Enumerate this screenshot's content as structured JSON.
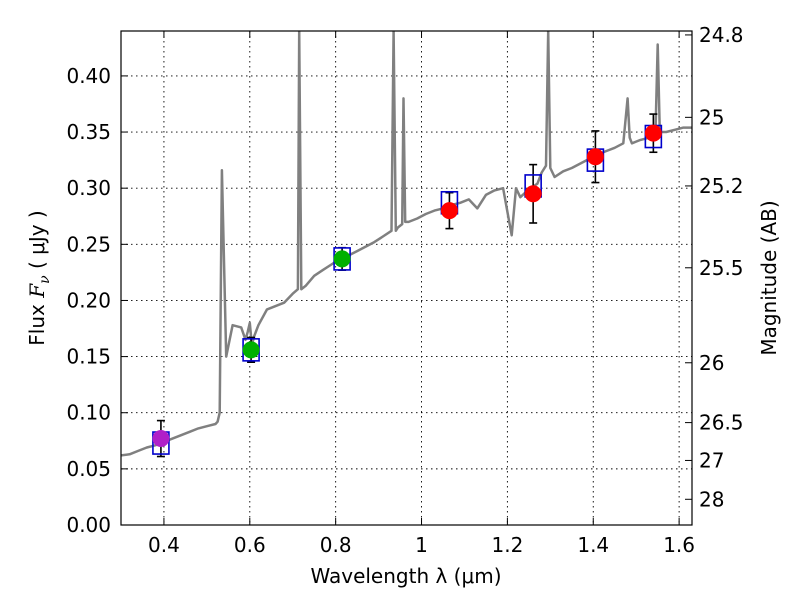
{
  "chart_data": {
    "type": "scatter",
    "xlabel": "Wavelength  λ (μm)",
    "ylabel_prefix": "Flux ",
    "ylabel_symbol": "F",
    "ylabel_sub": "ν",
    "ylabel_unit": "  ( μJy )",
    "y2label": "Magnitude (AB)",
    "xlim": [
      0.3,
      1.63
    ],
    "ylim": [
      0.0,
      0.44
    ],
    "grid": true,
    "x_ticks": [
      0.4,
      0.6,
      0.8,
      1.0,
      1.2,
      1.4,
      1.6
    ],
    "x_tick_labels": [
      "0.4",
      "0.6",
      "0.8",
      "1",
      "1.2",
      "1.4",
      "1.6"
    ],
    "y_ticks": [
      0.0,
      0.05,
      0.1,
      0.15,
      0.2,
      0.25,
      0.3,
      0.35,
      0.4
    ],
    "y_tick_labels": [
      "0.00",
      "0.05",
      "0.10",
      "0.15",
      "0.20",
      "0.25",
      "0.30",
      "0.35",
      "0.40"
    ],
    "mag_ticks": [
      {
        "label": "24.8",
        "flux": 0.4365
      },
      {
        "label": "25",
        "flux": 0.3631
      },
      {
        "label": "25.2",
        "flux": 0.302
      },
      {
        "label": "25.5",
        "flux": 0.2291
      },
      {
        "label": "26",
        "flux": 0.1445
      },
      {
        "label": "26.5",
        "flux": 0.0912
      },
      {
        "label": "27",
        "flux": 0.0575
      },
      {
        "label": "28",
        "flux": 0.0229
      }
    ],
    "spectrum": {
      "name": "model spectrum",
      "color": "#808080",
      "x": [
        0.3,
        0.32,
        0.34,
        0.36,
        0.38,
        0.4,
        0.42,
        0.44,
        0.46,
        0.48,
        0.5,
        0.52,
        0.525,
        0.53,
        0.535,
        0.545,
        0.56,
        0.58,
        0.59,
        0.595,
        0.6,
        0.605,
        0.61,
        0.62,
        0.64,
        0.66,
        0.68,
        0.7,
        0.712,
        0.715,
        0.72,
        0.73,
        0.75,
        0.77,
        0.79,
        0.81,
        0.83,
        0.85,
        0.87,
        0.89,
        0.91,
        0.93,
        0.935,
        0.94,
        0.945,
        0.955,
        0.958,
        0.962,
        0.97,
        0.99,
        1.01,
        1.03,
        1.05,
        1.07,
        1.09,
        1.11,
        1.13,
        1.15,
        1.17,
        1.19,
        1.21,
        1.22,
        1.23,
        1.25,
        1.27,
        1.28,
        1.29,
        1.295,
        1.3,
        1.31,
        1.33,
        1.35,
        1.37,
        1.39,
        1.41,
        1.43,
        1.45,
        1.47,
        1.48,
        1.485,
        1.49,
        1.51,
        1.53,
        1.545,
        1.55,
        1.555,
        1.57,
        1.59,
        1.61,
        1.63
      ],
      "y": [
        0.062,
        0.063,
        0.066,
        0.069,
        0.071,
        0.074,
        0.077,
        0.08,
        0.083,
        0.086,
        0.088,
        0.09,
        0.092,
        0.1,
        0.316,
        0.15,
        0.178,
        0.176,
        0.165,
        0.172,
        0.18,
        0.16,
        0.168,
        0.178,
        0.192,
        0.195,
        0.198,
        0.206,
        0.21,
        0.44,
        0.21,
        0.213,
        0.222,
        0.227,
        0.232,
        0.237,
        0.24,
        0.244,
        0.248,
        0.252,
        0.257,
        0.262,
        0.44,
        0.262,
        0.265,
        0.268,
        0.38,
        0.27,
        0.27,
        0.273,
        0.277,
        0.28,
        0.282,
        0.285,
        0.287,
        0.29,
        0.282,
        0.294,
        0.298,
        0.3,
        0.258,
        0.3,
        0.292,
        0.299,
        0.304,
        0.314,
        0.32,
        0.44,
        0.318,
        0.31,
        0.315,
        0.318,
        0.322,
        0.326,
        0.33,
        0.333,
        0.336,
        0.34,
        0.38,
        0.345,
        0.34,
        0.343,
        0.345,
        0.35,
        0.428,
        0.35,
        0.35,
        0.352,
        0.354,
        0.354
      ]
    },
    "series": [
      {
        "name": "violet",
        "color": "#b020c8",
        "points": [
          {
            "x": 0.393,
            "y": 0.077,
            "err": 0.016,
            "model": 0.073
          }
        ]
      },
      {
        "name": "green",
        "color": "#00b000",
        "points": [
          {
            "x": 0.603,
            "y": 0.156,
            "err": 0.011,
            "model": 0.156
          },
          {
            "x": 0.815,
            "y": 0.237,
            "err": 0.01,
            "model": 0.237
          }
        ]
      },
      {
        "name": "red",
        "color": "#ff0000",
        "points": [
          {
            "x": 1.065,
            "y": 0.28,
            "err": 0.016,
            "model": 0.287
          },
          {
            "x": 1.26,
            "y": 0.295,
            "err": 0.026,
            "model": 0.302
          },
          {
            "x": 1.405,
            "y": 0.328,
            "err": 0.023,
            "model": 0.325
          },
          {
            "x": 1.54,
            "y": 0.349,
            "err": 0.017,
            "model": 0.346
          }
        ]
      }
    ],
    "model_marker": {
      "name": "model flux",
      "color": "#0000cc",
      "shape": "open-square"
    }
  }
}
